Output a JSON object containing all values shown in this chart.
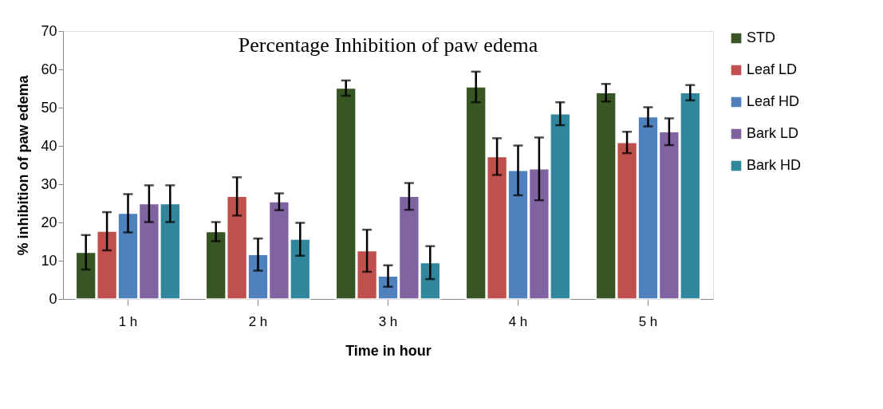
{
  "chart_data": {
    "type": "bar",
    "title": "Percentage Inhibition of paw edema",
    "xlabel": "Time in hour",
    "ylabel": "% inhibition of paw edema",
    "categories": [
      "1 h",
      "2 h",
      "3 h",
      "4 h",
      "5 h"
    ],
    "series": [
      {
        "name": "STD",
        "color": "#375623",
        "values": [
          12.2,
          17.6,
          55.1,
          55.4,
          53.9
        ],
        "errors": [
          4.5,
          2.5,
          2,
          4,
          2.3
        ]
      },
      {
        "name": "Leaf LD",
        "color": "#c0504d",
        "values": [
          17.7,
          26.8,
          12.6,
          37.2,
          40.9
        ],
        "errors": [
          5,
          5,
          5.5,
          4.8,
          2.8
        ]
      },
      {
        "name": "Leaf HD",
        "color": "#4f81bd",
        "values": [
          22.4,
          11.6,
          6,
          33.6,
          47.6
        ],
        "errors": [
          5,
          4.2,
          2.8,
          6.5,
          2.5
        ]
      },
      {
        "name": "Bark LD",
        "color": "#8064a2",
        "values": [
          24.9,
          25.4,
          26.8,
          34,
          43.7
        ],
        "errors": [
          4.8,
          2.2,
          3.5,
          8.2,
          3.5
        ]
      },
      {
        "name": "Bark HD",
        "color": "#31859c",
        "values": [
          24.9,
          15.6,
          9.5,
          48.4,
          53.9
        ],
        "errors": [
          4.8,
          4.3,
          4.3,
          3,
          2
        ]
      }
    ],
    "ylim": [
      0,
      70
    ],
    "yticks": [
      0,
      10,
      20,
      30,
      40,
      50,
      60,
      70
    ],
    "grid": false,
    "legend": "right"
  }
}
